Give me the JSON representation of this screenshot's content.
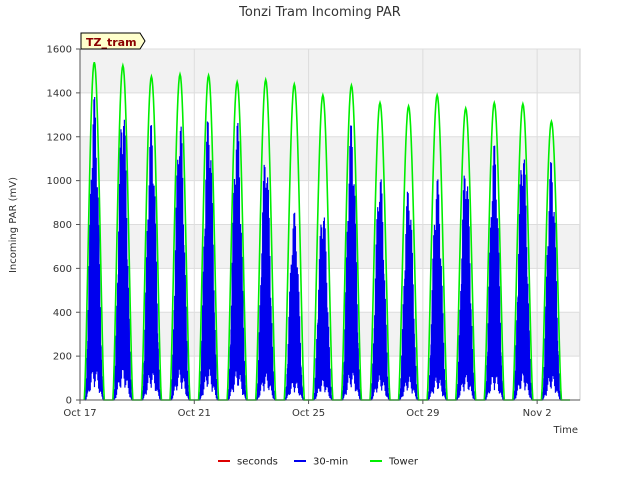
{
  "chart_data": {
    "type": "line",
    "title": "Tonzi Tram Incoming PAR",
    "xlabel": "Time",
    "ylabel": "Incoming PAR (mV)",
    "badge": "TZ_tram",
    "ylim": [
      0,
      1600
    ],
    "yticks": [
      0,
      200,
      400,
      600,
      800,
      1000,
      1200,
      1400,
      1600
    ],
    "xlim": [
      "2024-10-17",
      "2024-11-03T12:00"
    ],
    "xticks": [
      {
        "date": "2024-10-17",
        "label": "Oct 17"
      },
      {
        "date": "2024-10-21",
        "label": "Oct 21"
      },
      {
        "date": "2024-10-25",
        "label": "Oct 25"
      },
      {
        "date": "2024-10-29",
        "label": "Oct 29"
      },
      {
        "date": "2024-11-02",
        "label": "Nov 2"
      }
    ],
    "grid": true,
    "legend_position": "bottom",
    "series": [
      {
        "name": "seconds",
        "color": "#dd0000",
        "values": []
      },
      {
        "name": "30-min",
        "color": "#0000ee",
        "daily_dates": [
          "2024-10-17",
          "2024-10-18",
          "2024-10-19",
          "2024-10-20",
          "2024-10-21",
          "2024-10-22",
          "2024-10-23",
          "2024-10-24",
          "2024-10-25",
          "2024-10-26",
          "2024-10-27",
          "2024-10-28",
          "2024-10-29",
          "2024-10-30",
          "2024-10-31",
          "2024-11-01",
          "2024-11-02"
        ],
        "daily_peaks": [
          1390,
          1370,
          1270,
          1290,
          1310,
          1280,
          1140,
          860,
          890,
          1270,
          1040,
          980,
          1020,
          1090,
          1170,
          1170,
          1100
        ]
      },
      {
        "name": "Tower",
        "color": "#00ee00",
        "daily_dates": [
          "2024-10-17",
          "2024-10-18",
          "2024-10-19",
          "2024-10-20",
          "2024-10-21",
          "2024-10-22",
          "2024-10-23",
          "2024-10-24",
          "2024-10-25",
          "2024-10-26",
          "2024-10-27",
          "2024-10-28",
          "2024-10-29",
          "2024-10-30",
          "2024-10-31",
          "2024-11-01",
          "2024-11-02"
        ],
        "daily_peaks": [
          1540,
          1525,
          1475,
          1485,
          1480,
          1450,
          1460,
          1440,
          1390,
          1435,
          1355,
          1340,
          1390,
          1330,
          1355,
          1350,
          1270
        ]
      }
    ]
  }
}
